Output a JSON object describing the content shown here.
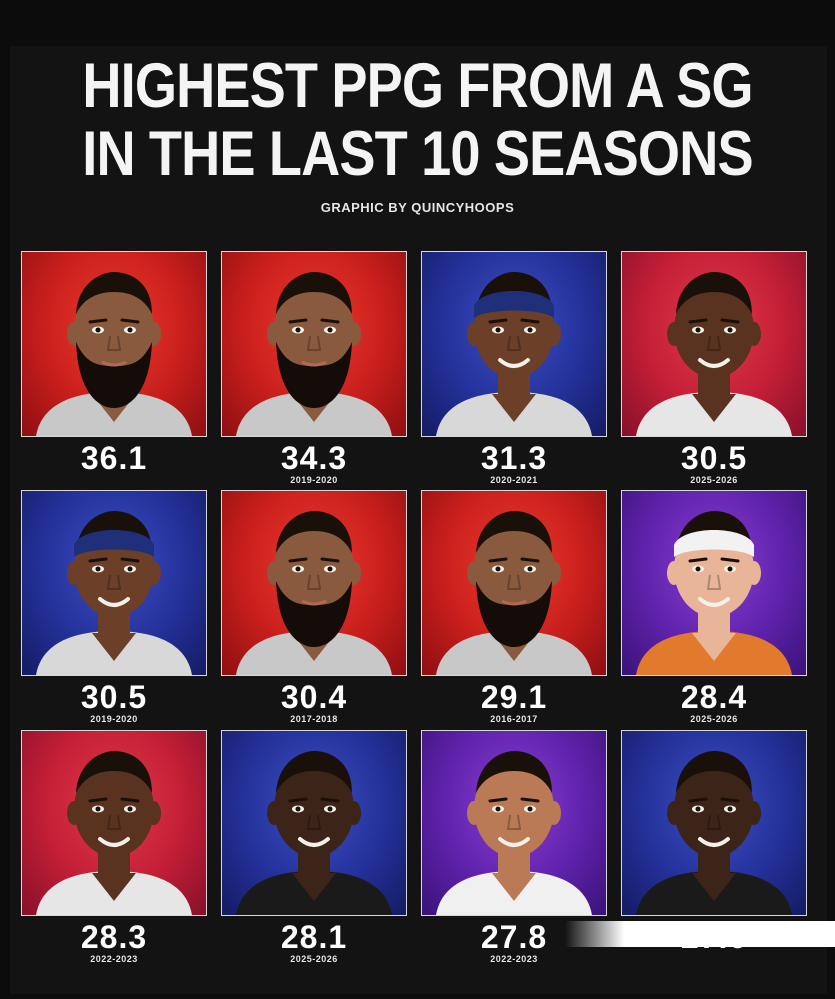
{
  "title_lines": [
    "HIGHEST PPG FROM A SG",
    "IN THE LAST 10 SEASONS"
  ],
  "byline": "GRAPHIC BY QUINCYHOOPS",
  "cards": [
    {
      "ppg": "36.1",
      "season": "",
      "bg": "red",
      "skin": "#8a5a3e",
      "beard": true,
      "band": "",
      "jersey": "#c8c8c8"
    },
    {
      "ppg": "34.3",
      "season": "2019-2020",
      "bg": "red",
      "skin": "#8a5a3e",
      "beard": true,
      "band": "",
      "jersey": "#c8c8c8"
    },
    {
      "ppg": "31.3",
      "season": "2020-2021",
      "bg": "blue",
      "skin": "#6b3f28",
      "beard": false,
      "band": "#1f2f7a",
      "jersey": "#d8d8d8"
    },
    {
      "ppg": "30.5",
      "season": "2025-2026",
      "bg": "pinkred",
      "skin": "#5a3320",
      "beard": false,
      "band": "",
      "jersey": "#e6e6e6"
    },
    {
      "ppg": "30.5",
      "season": "2019-2020",
      "bg": "blue",
      "skin": "#6b3f28",
      "beard": false,
      "band": "#1f2f7a",
      "jersey": "#d8d8d8"
    },
    {
      "ppg": "30.4",
      "season": "2017-2018",
      "bg": "red",
      "skin": "#8a5a3e",
      "beard": true,
      "band": "",
      "jersey": "#c8c8c8"
    },
    {
      "ppg": "29.1",
      "season": "2016-2017",
      "bg": "red",
      "skin": "#8a5a3e",
      "beard": true,
      "band": "",
      "jersey": "#c8c8c8"
    },
    {
      "ppg": "28.4",
      "season": "2025-2026",
      "bg": "purple",
      "skin": "#e8b598",
      "beard": false,
      "band": "#f2f2f2",
      "jersey": "#e27a2e"
    },
    {
      "ppg": "28.3",
      "season": "2022-2023",
      "bg": "pinkred",
      "skin": "#5a3320",
      "beard": false,
      "band": "",
      "jersey": "#e6e6e6"
    },
    {
      "ppg": "28.1",
      "season": "2025-2026",
      "bg": "blue",
      "skin": "#3d2418",
      "beard": false,
      "band": "",
      "jersey": "#1a1a1a"
    },
    {
      "ppg": "27.8",
      "season": "2022-2023",
      "bg": "purple",
      "skin": "#b97a55",
      "beard": false,
      "band": "",
      "jersey": "#f0f0f0"
    },
    {
      "ppg": "27.6",
      "season": "",
      "bg": "blue",
      "skin": "#3d2418",
      "beard": false,
      "band": "",
      "jersey": "#1a1a1a"
    }
  ]
}
